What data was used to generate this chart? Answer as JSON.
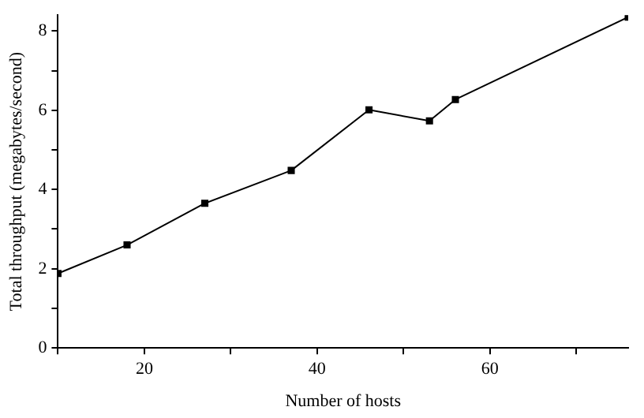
{
  "chart_data": {
    "type": "line",
    "xlabel": "Number of hosts",
    "ylabel": "Total throughput (megabytes/second)",
    "x": [
      10,
      18,
      27,
      37,
      46,
      53,
      56,
      76
    ],
    "series": [
      {
        "color": "#000000",
        "values": [
          1.88,
          2.6,
          3.65,
          4.48,
          6.01,
          5.73,
          6.27,
          8.35
        ]
      }
    ],
    "xlim": [
      10,
      76
    ],
    "xticks": [
      {
        "value": 10,
        "label": null
      },
      20,
      {
        "value": 30,
        "label": null
      },
      40,
      {
        "value": 50,
        "label": null
      },
      60,
      {
        "value": 70,
        "label": null
      }
    ],
    "ylim": [
      0,
      8.4
    ],
    "yticks": [
      0,
      {
        "value": 1,
        "label": null
      },
      2,
      {
        "value": 3,
        "label": null
      },
      4,
      {
        "value": 5,
        "label": null
      },
      6,
      {
        "value": 7,
        "label": null
      },
      8
    ],
    "grid": false,
    "legend": false,
    "marker": "square",
    "line_style": "solid"
  }
}
